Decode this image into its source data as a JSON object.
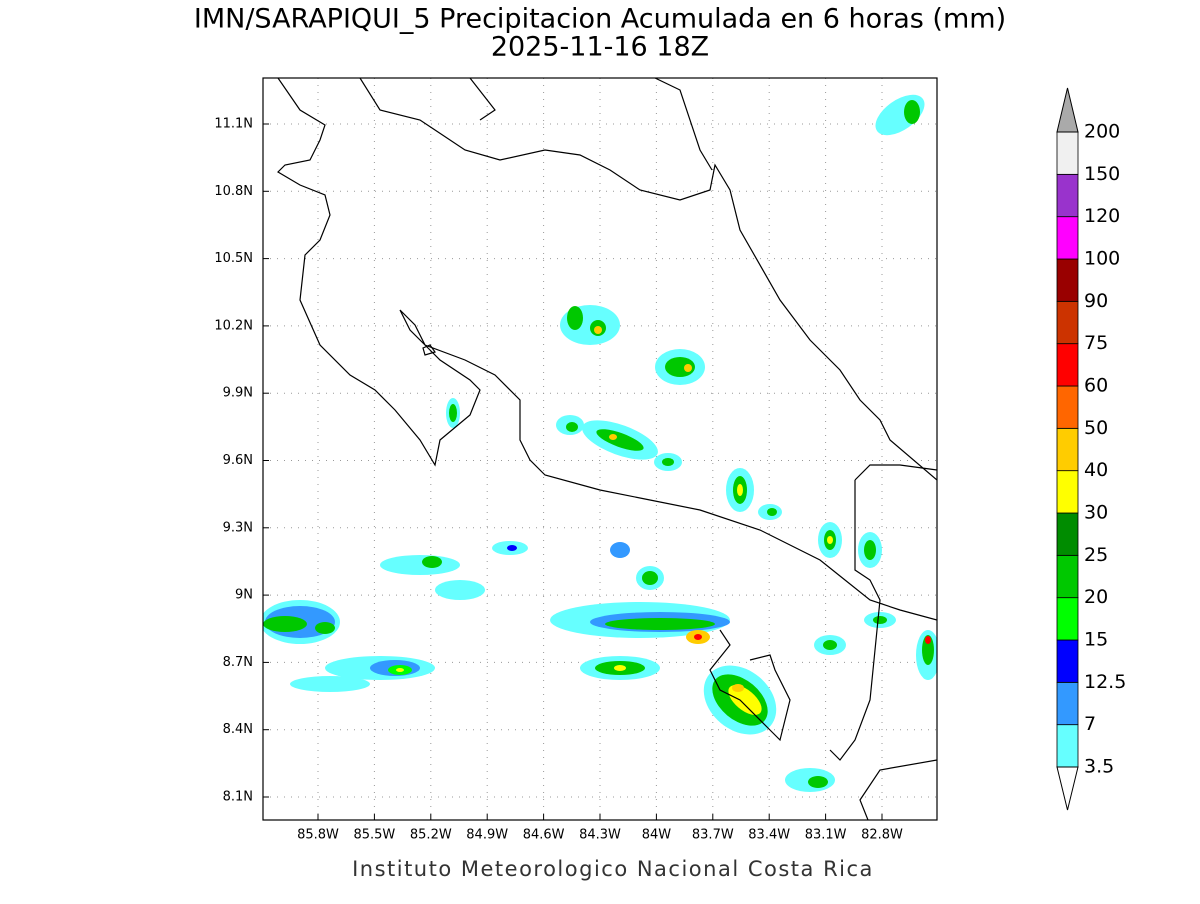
{
  "header": {
    "title": "IMN/SARAPIQUI_5 Precipitacion Acumulada en 6 horas (mm)",
    "subtitle": "2025-11-16 18Z"
  },
  "map": {
    "lat_labels": [
      "11.1N",
      "10.8N",
      "10.5N",
      "10.2N",
      "9.9N",
      "9.6N",
      "9.3N",
      "9N",
      "8.7N",
      "8.4N",
      "8.1N"
    ],
    "lon_labels": [
      "85.8W",
      "85.5W",
      "85.2W",
      "84.9W",
      "84.6W",
      "84.3W",
      "84W",
      "83.7W",
      "83.4W",
      "83.1W",
      "82.8W"
    ]
  },
  "colorbar": {
    "labels": [
      "3.5",
      "7",
      "12.5",
      "15",
      "20",
      "25",
      "30",
      "40",
      "50",
      "60",
      "75",
      "90",
      "100",
      "120",
      "150",
      "200"
    ],
    "colors": [
      "#66ffff",
      "#3399ff",
      "#0000ff",
      "#00ff00",
      "#00c800",
      "#008c00",
      "#ffff00",
      "#ffcc00",
      "#ff6600",
      "#ff0000",
      "#cc3300",
      "#990000",
      "#ff00ff",
      "#9933cc",
      "#f0f0f0"
    ],
    "over_color": "#aaaaaa",
    "under_color": "#ffffff"
  },
  "footer": "Instituto Meteorologico Nacional Costa Rica"
}
